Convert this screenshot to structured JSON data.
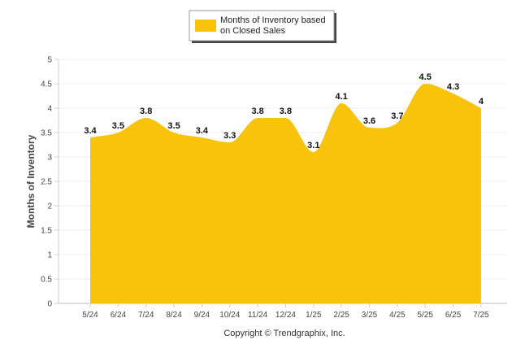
{
  "chart_data": {
    "type": "area",
    "categories": [
      "5/24",
      "6/24",
      "7/24",
      "8/24",
      "9/24",
      "10/24",
      "11/24",
      "12/24",
      "1/25",
      "2/25",
      "3/25",
      "4/25",
      "5/25",
      "6/25",
      "7/25"
    ],
    "series": [
      {
        "name": "Months of Inventory based on Closed Sales",
        "values": [
          3.4,
          3.5,
          3.8,
          3.5,
          3.4,
          3.3,
          3.8,
          3.8,
          3.1,
          4.1,
          3.6,
          3.7,
          4.5,
          4.3,
          4
        ],
        "color": "#F8C309"
      }
    ],
    "data_labels": [
      "3.4",
      "3.5",
      "3.8",
      "3.5",
      "3.4",
      "3.3",
      "3.8",
      "3.8",
      "3.1",
      "4.1",
      "3.6",
      "3.7",
      "4.5",
      "4.3",
      "4"
    ],
    "yticks": [
      "0",
      "0.5",
      "1",
      "1.5",
      "2",
      "2.5",
      "3",
      "3.5",
      "4",
      "4.5",
      "5"
    ],
    "ylabel": "Months of Inventory",
    "xlabel": "",
    "title": "",
    "ylim": [
      0,
      5
    ],
    "grid": true,
    "legend": {
      "position": "top-center",
      "line1": "Months of Inventory based",
      "line2": "on Closed Sales"
    }
  },
  "credit": "Copyright © Trendgraphix, Inc."
}
